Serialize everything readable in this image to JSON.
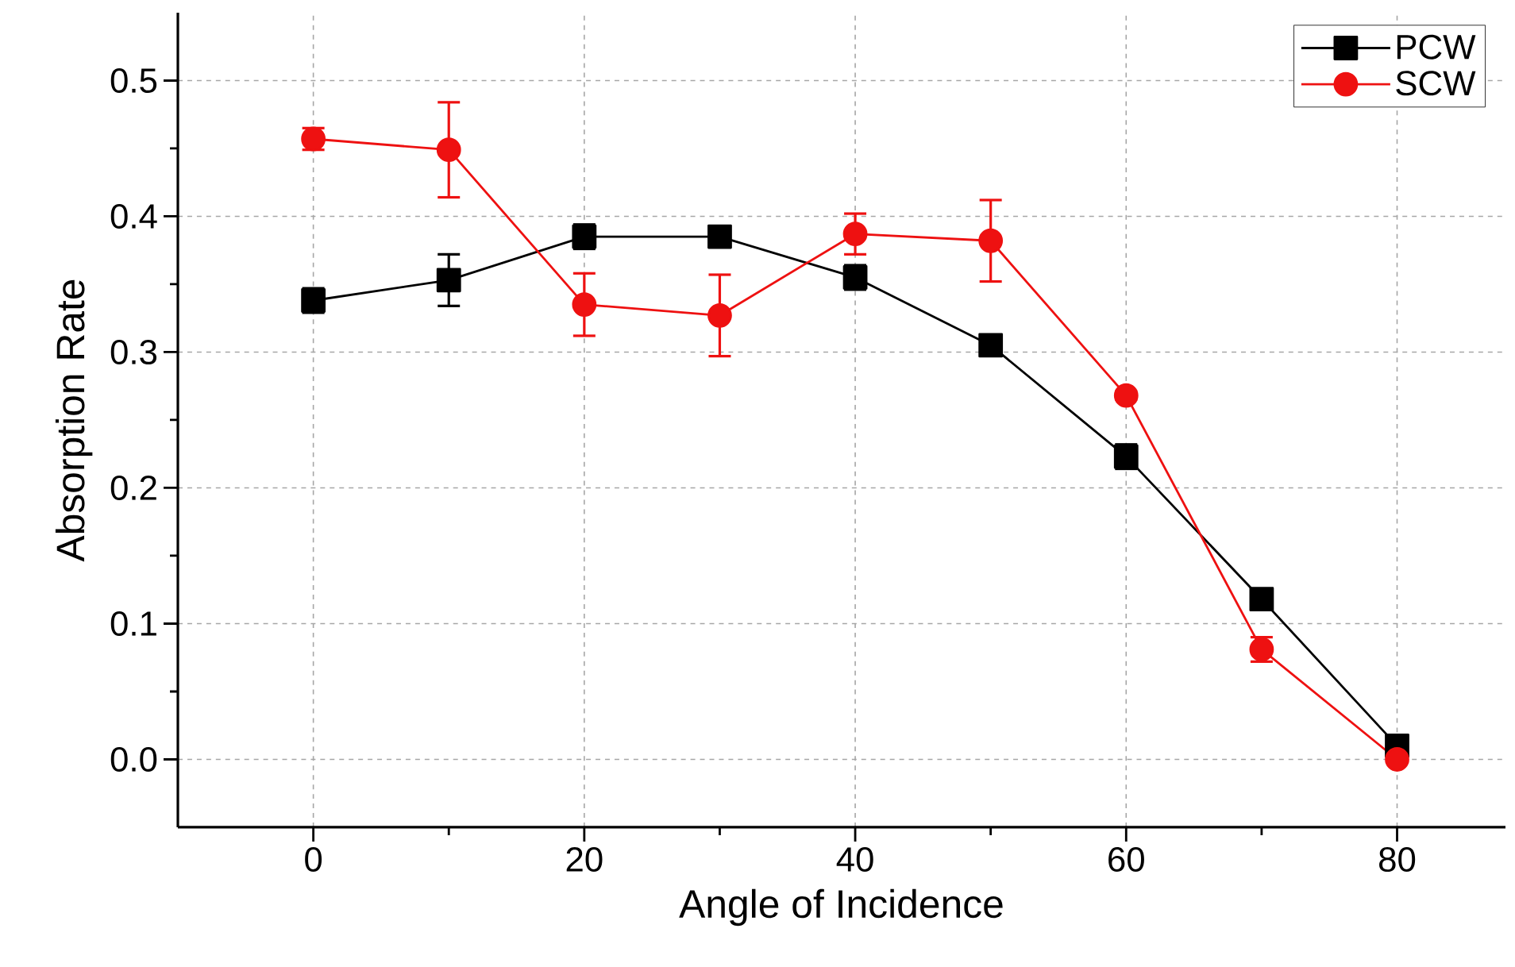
{
  "chart_data": {
    "type": "line",
    "xlabel": "Angle of Incidence",
    "ylabel": "Absorption Rate",
    "x": [
      0,
      10,
      20,
      30,
      40,
      50,
      60,
      70,
      80
    ],
    "series": [
      {
        "name": "PCW",
        "color": "#000000",
        "marker": "square",
        "values": [
          0.338,
          0.353,
          0.385,
          0.385,
          0.355,
          0.305,
          0.223,
          0.118,
          0.01
        ],
        "errors": [
          0.009,
          0.019,
          0.009,
          0.003,
          0.009,
          0.004,
          0.009,
          0.004,
          0.003
        ]
      },
      {
        "name": "SCW",
        "color": "#ee1111",
        "marker": "circle",
        "values": [
          0.457,
          0.449,
          0.335,
          0.327,
          0.387,
          0.382,
          0.268,
          0.081,
          0.0
        ],
        "errors": [
          0.008,
          0.035,
          0.023,
          0.03,
          0.015,
          0.03,
          0.003,
          0.009,
          0.002
        ]
      }
    ],
    "xlim": [
      -10,
      88
    ],
    "ylim": [
      -0.05,
      0.55
    ],
    "xticks": [
      0,
      20,
      40,
      60,
      80
    ],
    "yticks": [
      {
        "value": 0,
        "label": "0.0"
      },
      {
        "value": 0.1,
        "label": "0.1"
      },
      {
        "value": 0.2,
        "label": "0.2"
      },
      {
        "value": 0.3,
        "label": "0.3"
      },
      {
        "value": 0.4,
        "label": "0.4"
      },
      {
        "value": 0.5,
        "label": "0.5"
      }
    ],
    "grid": true,
    "legend": "top right",
    "line_style": "solid"
  }
}
